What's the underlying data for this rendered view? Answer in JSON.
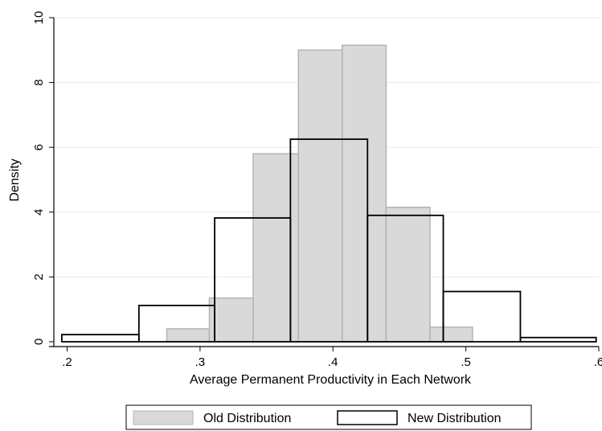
{
  "chart_data": {
    "type": "bar",
    "title": "",
    "xlabel": "Average Permanent Productivity in Each Network",
    "ylabel": "Density",
    "xlim": [
      0.19,
      0.6
    ],
    "ylim": [
      0,
      10
    ],
    "x_ticks": [
      0.2,
      0.3,
      0.4,
      0.5,
      0.6
    ],
    "x_tick_labels": [
      ".2",
      ".3",
      ".4",
      ".5",
      ".6"
    ],
    "y_ticks": [
      0,
      2,
      4,
      6,
      8,
      10
    ],
    "y_tick_labels": [
      "0",
      "2",
      "4",
      "6",
      "8",
      "10"
    ],
    "grid": true,
    "legend_position": "bottom",
    "series": [
      {
        "name": "Old Distribution",
        "style": "filled",
        "color": "#d9d9d9",
        "edge_color": "#b4b4b4",
        "bins": [
          {
            "x0": 0.275,
            "x1": 0.307,
            "value": 0.4
          },
          {
            "x0": 0.307,
            "x1": 0.34,
            "value": 1.35
          },
          {
            "x0": 0.34,
            "x1": 0.374,
            "value": 5.8
          },
          {
            "x0": 0.374,
            "x1": 0.407,
            "value": 9.0
          },
          {
            "x0": 0.407,
            "x1": 0.44,
            "value": 9.15
          },
          {
            "x0": 0.44,
            "x1": 0.473,
            "value": 4.15
          },
          {
            "x0": 0.473,
            "x1": 0.505,
            "value": 0.45
          }
        ]
      },
      {
        "name": "New Distribution",
        "style": "outline",
        "color": "#000000",
        "bins": [
          {
            "x0": 0.196,
            "x1": 0.254,
            "value": 0.22
          },
          {
            "x0": 0.254,
            "x1": 0.311,
            "value": 1.12
          },
          {
            "x0": 0.311,
            "x1": 0.368,
            "value": 3.82
          },
          {
            "x0": 0.368,
            "x1": 0.426,
            "value": 6.25
          },
          {
            "x0": 0.426,
            "x1": 0.483,
            "value": 3.9
          },
          {
            "x0": 0.483,
            "x1": 0.541,
            "value": 1.55
          },
          {
            "x0": 0.541,
            "x1": 0.598,
            "value": 0.13
          }
        ]
      }
    ]
  }
}
